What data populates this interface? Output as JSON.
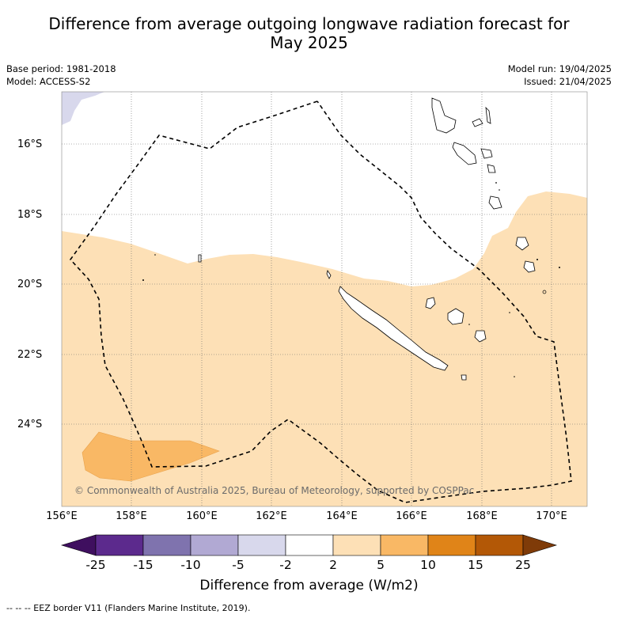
{
  "title_line1": "Difference from average outgoing longwave radiation forecast for",
  "title_line2": "May 2025",
  "base_period": "Base period: 1981-2018",
  "model": "Model: ACCESS-S2",
  "model_run": "Model run: 19/04/2025",
  "issued": "Issued: 21/04/2025",
  "lat_labels": [
    "16°S",
    "18°S",
    "20°S",
    "22°S",
    "24°S"
  ],
  "lon_labels": [
    "156°E",
    "158°E",
    "160°E",
    "162°E",
    "164°E",
    "166°E",
    "168°E",
    "170°E"
  ],
  "copyright": "© Commonwealth of Australia 2025, Bureau of Meteorology, supported by COSPPac",
  "colorbar": {
    "ticks": [
      "-25",
      "-15",
      "-10",
      "-5",
      "-2",
      "2",
      "5",
      "10",
      "15",
      "25"
    ],
    "colors": [
      "#3f0f5f",
      "#5c2a8d",
      "#7f73ae",
      "#b1a9d3",
      "#d8d8ec",
      "#ffffff",
      "#fde0b6",
      "#f9b865",
      "#e08418",
      "#b35806",
      "#7f3b08"
    ],
    "label": "Difference from average (W/m2)"
  },
  "legend_footnote": "-- -- -- EEZ border V11 (Flanders Marine Institute, 2019).",
  "map": {
    "extent": {
      "lon": [
        156,
        171
      ],
      "lat": [
        -26.4,
        -14.6
      ]
    },
    "land_color": "#ffffff",
    "coast_color": "#000000"
  }
}
